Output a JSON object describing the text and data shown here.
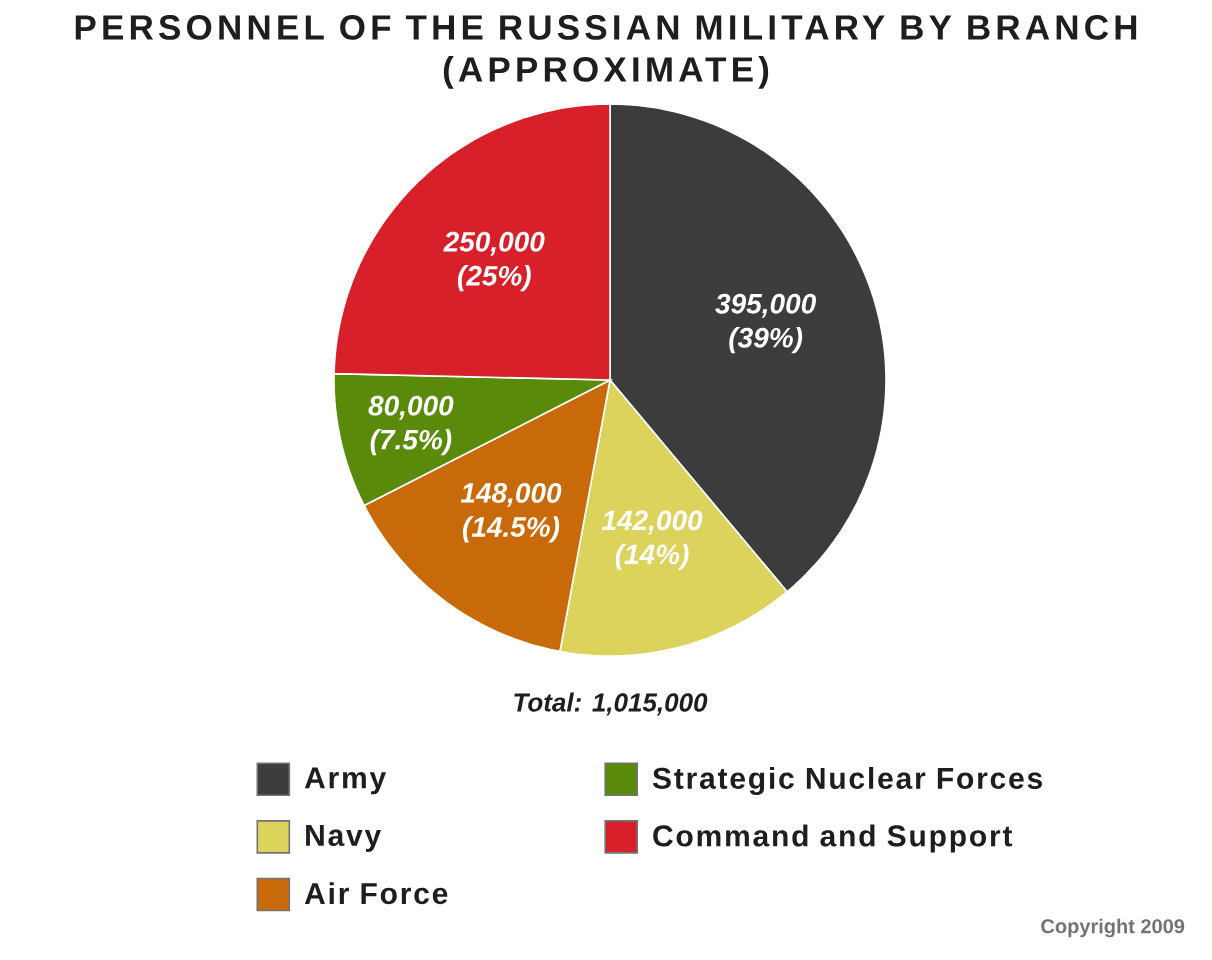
{
  "chart_data": {
    "type": "pie",
    "title": "PERSONNEL OF THE RUSSIAN MILITARY BY BRANCH (APPROXIMATE)",
    "categories": [
      "Army",
      "Navy",
      "Air Force",
      "Strategic Nuclear Forces",
      "Command and Support"
    ],
    "values": [
      395000,
      142000,
      148000,
      80000,
      250000
    ],
    "colors": [
      "#3c3c3c",
      "#dcd35c",
      "#c86a0a",
      "#5a8a0a",
      "#d8202a"
    ],
    "value_labels": [
      "395,000 (39%)",
      "142,000 (14%)",
      "148,000 (14.5%)",
      "80,000 (7.5%)",
      "250,000 (25%)"
    ],
    "legend": "bottom",
    "annotations": [
      "Total: 1,015,000",
      "Copyright 2009"
    ]
  }
}
